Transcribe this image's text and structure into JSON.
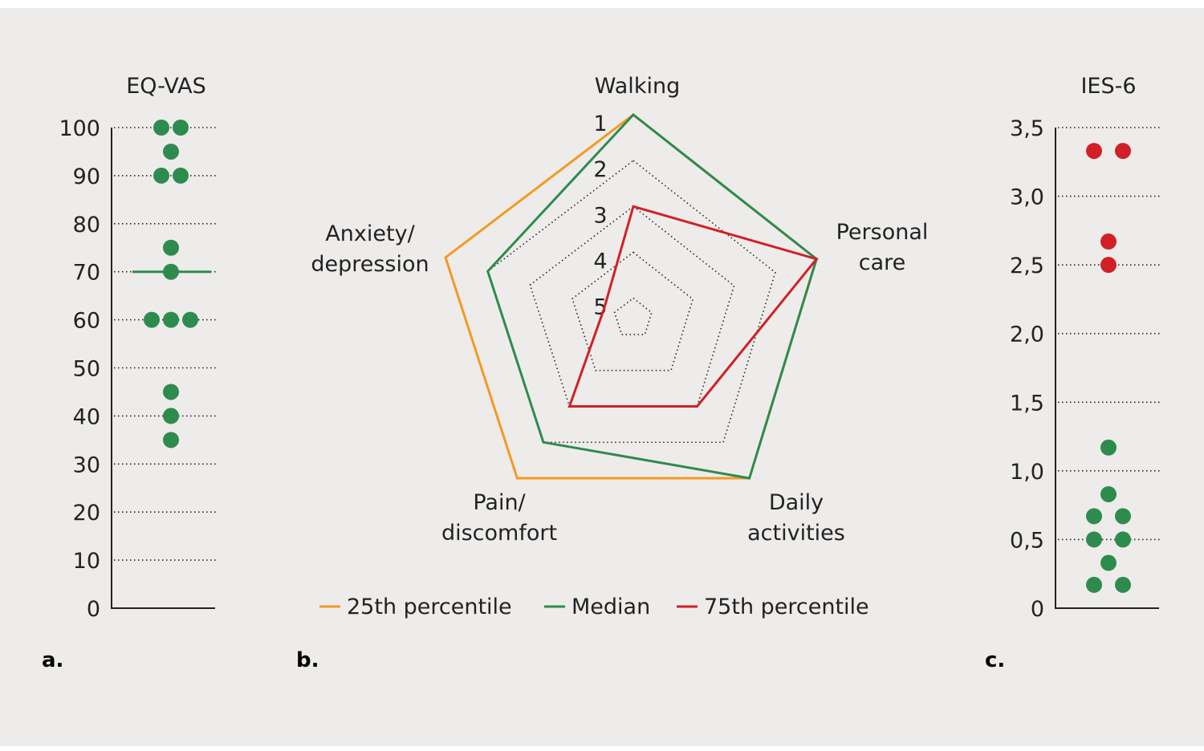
{
  "colors": {
    "background": "#eeecea",
    "green": "#2e8b4e",
    "red": "#d12027",
    "orange": "#f39a21",
    "text": "#222222"
  },
  "chart_data": [
    {
      "panel": "a.",
      "type": "scatter",
      "title": "EQ-VAS",
      "ylim": [
        0,
        100
      ],
      "yticks": [
        "0",
        "10",
        "20",
        "30",
        "40",
        "50",
        "60",
        "70",
        "80",
        "90",
        "100"
      ],
      "grid": true,
      "points": [
        {
          "value": 100,
          "count": 2,
          "color": "green"
        },
        {
          "value": 95,
          "count": 1,
          "color": "green"
        },
        {
          "value": 90,
          "count": 2,
          "color": "green"
        },
        {
          "value": 75,
          "count": 1,
          "color": "green"
        },
        {
          "value": 70,
          "count": 1,
          "color": "green"
        },
        {
          "value": 60,
          "count": 3,
          "color": "green"
        },
        {
          "value": 45,
          "count": 1,
          "color": "green"
        },
        {
          "value": 40,
          "count": 1,
          "color": "green"
        },
        {
          "value": 35,
          "count": 1,
          "color": "green"
        }
      ],
      "median": 70
    },
    {
      "panel": "b.",
      "type": "radar",
      "axes": [
        "Walking",
        "Personal care",
        "Daily activities",
        "Pain/ discomfort",
        "Anxiety/ depression"
      ],
      "axis_label_lines": [
        [
          "Walking"
        ],
        [
          "Personal",
          "care"
        ],
        [
          "Daily",
          "activities"
        ],
        [
          "Pain/",
          "discomfort"
        ],
        [
          "Anxiety/",
          "depression"
        ]
      ],
      "scale_labels": [
        "1",
        "2",
        "3",
        "4",
        "5"
      ],
      "scale": {
        "outer": 1,
        "inner": 5,
        "reversed": true
      },
      "series": [
        {
          "name": "25th percentile",
          "color": "orange",
          "values": [
            1,
            1,
            1,
            1,
            1
          ]
        },
        {
          "name": "Median",
          "color": "green",
          "values": [
            1,
            1,
            1,
            2,
            2
          ]
        },
        {
          "name": "75th percentile",
          "color": "red",
          "values": [
            3,
            1,
            3,
            3,
            4.75
          ]
        }
      ],
      "legend": "bottom"
    },
    {
      "panel": "c.",
      "type": "scatter",
      "title": "IES-6",
      "ylim": [
        0,
        3.5
      ],
      "yticks": [
        "0",
        "0,5",
        "1,0",
        "1,5",
        "2,0",
        "2,5",
        "3,0",
        "3,5"
      ],
      "grid": true,
      "points": [
        {
          "value": 3.33,
          "count": 2,
          "color": "red"
        },
        {
          "value": 2.67,
          "count": 1,
          "color": "red"
        },
        {
          "value": 2.5,
          "count": 1,
          "color": "red"
        },
        {
          "value": 1.17,
          "count": 1,
          "color": "green"
        },
        {
          "value": 0.83,
          "count": 1,
          "color": "green"
        },
        {
          "value": 0.67,
          "count": 2,
          "color": "green"
        },
        {
          "value": 0.5,
          "count": 2,
          "color": "green"
        },
        {
          "value": 0.33,
          "count": 1,
          "color": "green"
        },
        {
          "value": 0.17,
          "count": 2,
          "color": "green"
        }
      ]
    }
  ]
}
